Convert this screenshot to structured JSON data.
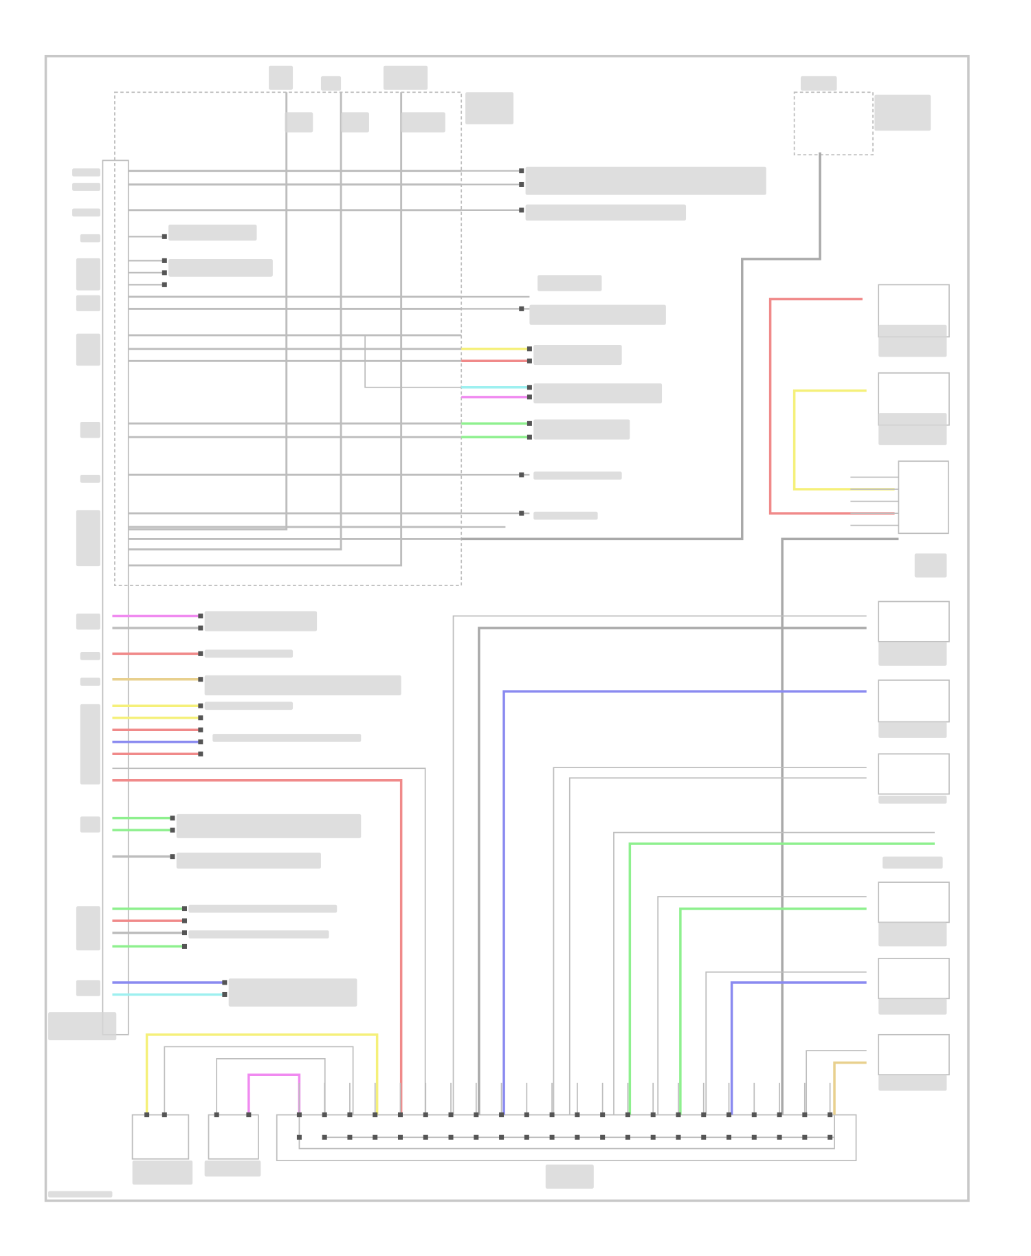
{
  "diagram": {
    "type": "wiring-schematic",
    "legible_text": false,
    "colors": {
      "frame": "#c8c8c8",
      "wire_gray": "#bdbdbd",
      "wire_dark": "#a9a9a9",
      "label_blur": "#d6d6d6",
      "red": "#f08a8a",
      "yellow": "#f5f07a",
      "blue": "#8a8af0",
      "green": "#8ef08e",
      "magenta": "#f08af0",
      "cyan": "#9ef0f0",
      "tan": "#e8d08e",
      "node": "#555555"
    }
  }
}
